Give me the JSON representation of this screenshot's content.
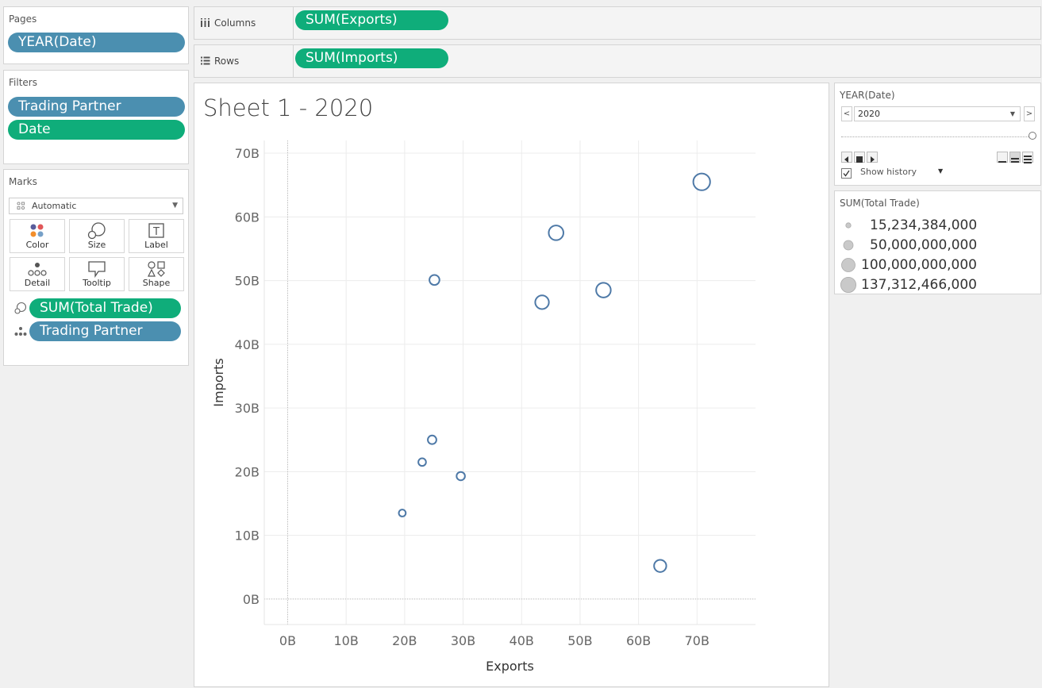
{
  "pages": {
    "title": "Pages",
    "pills": [
      "YEAR(Date)"
    ]
  },
  "filters": {
    "title": "Filters",
    "pills": [
      "Trading Partner",
      "Date"
    ]
  },
  "marks": {
    "title": "Marks",
    "mark_type": "Automatic",
    "buttons": [
      "Color",
      "Size",
      "Label",
      "Detail",
      "Tooltip",
      "Shape"
    ],
    "encodings": [
      {
        "icon": "size-icon",
        "field": "SUM(Total Trade)",
        "color": "#0fad7a"
      },
      {
        "icon": "detail-icon",
        "field": "Trading Partner",
        "color": "#4b8fb0"
      }
    ]
  },
  "shelves": {
    "columns": {
      "label": "Columns",
      "pill": "SUM(Exports)"
    },
    "rows": {
      "label": "Rows",
      "pill": "SUM(Imports)"
    }
  },
  "sheet": {
    "title": "Sheet 1 - 2020"
  },
  "page_control": {
    "title": "YEAR(Date)",
    "selected": "2020",
    "show_history_label": "Show history",
    "show_history_checked": true
  },
  "size_legend": {
    "title": "SUM(Total Trade)",
    "entries": [
      "15,234,384,000",
      "50,000,000,000",
      "100,000,000,000",
      "137,312,466,000"
    ]
  },
  "chart_data": {
    "type": "scatter",
    "xlabel": "Exports",
    "ylabel": "Imports",
    "xlim": [
      -4,
      80
    ],
    "ylim": [
      -4,
      72
    ],
    "x_ticks": [
      0,
      10,
      20,
      30,
      40,
      50,
      60,
      70
    ],
    "y_ticks": [
      0,
      10,
      20,
      30,
      40,
      50,
      60,
      70
    ],
    "tick_suffix": "B",
    "grid": true,
    "mark_color": "#4e79a7",
    "points": [
      {
        "x": 19.6,
        "y": 13.5,
        "size": 19.6
      },
      {
        "x": 23.0,
        "y": 21.5,
        "size": 24.5
      },
      {
        "x": 24.7,
        "y": 25.0,
        "size": 32.0
      },
      {
        "x": 29.6,
        "y": 19.3,
        "size": 30.0
      },
      {
        "x": 25.1,
        "y": 50.1,
        "size": 45.0
      },
      {
        "x": 43.5,
        "y": 46.6,
        "size": 88.0
      },
      {
        "x": 45.9,
        "y": 57.5,
        "size": 103.0
      },
      {
        "x": 54.0,
        "y": 48.5,
        "size": 102.0
      },
      {
        "x": 63.7,
        "y": 5.2,
        "size": 69.0
      },
      {
        "x": 70.8,
        "y": 65.5,
        "size": 137.0
      }
    ]
  }
}
